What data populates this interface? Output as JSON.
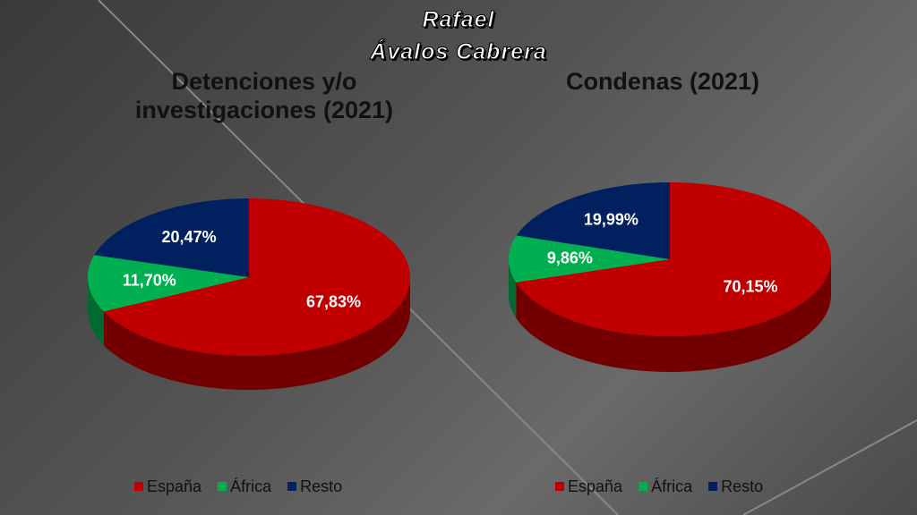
{
  "watermark": [
    "Rafael",
    "Ávalos Cabrera"
  ],
  "chart_data": [
    {
      "type": "pie",
      "title": "Detenciones y/o investigaciones (2021)",
      "categories": [
        "España",
        "África",
        "Resto"
      ],
      "values": [
        67.83,
        11.7,
        20.47
      ],
      "value_labels": [
        "67,83%",
        "11,70%",
        "20,47%"
      ],
      "colors": [
        "#c00000",
        "#00b050",
        "#002060"
      ]
    },
    {
      "type": "pie",
      "title": "Condenas (2021)",
      "categories": [
        "España",
        "África",
        "Resto"
      ],
      "values": [
        70.15,
        9.86,
        19.99
      ],
      "value_labels": [
        "70,15%",
        "9,86%",
        "19,99%"
      ],
      "colors": [
        "#c00000",
        "#00b050",
        "#002060"
      ]
    }
  ]
}
